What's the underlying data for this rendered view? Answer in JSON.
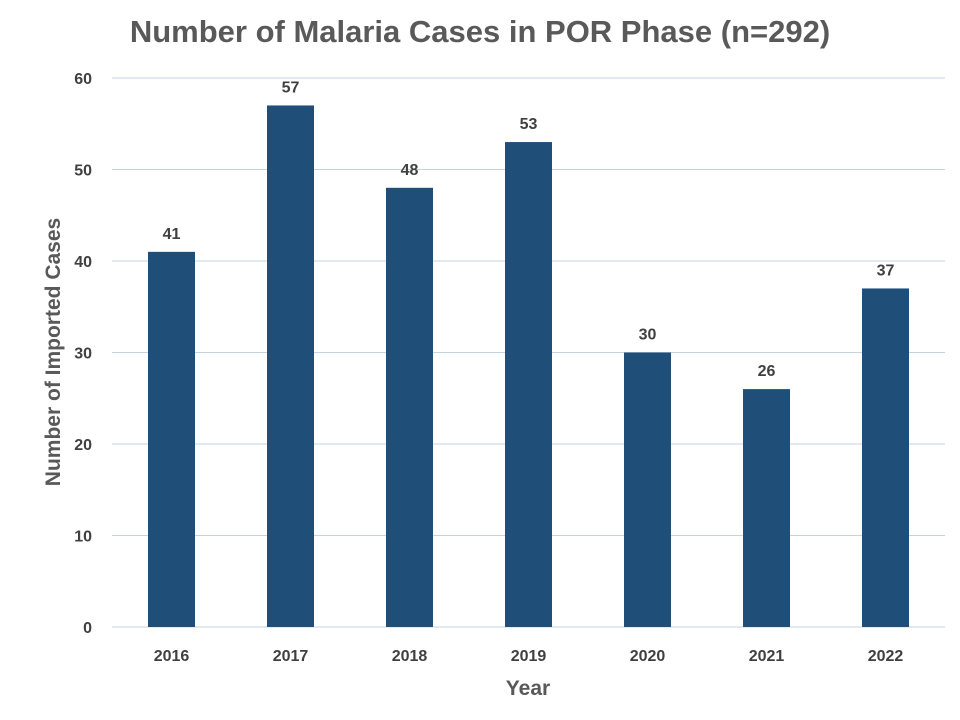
{
  "chart_data": {
    "type": "bar",
    "title": "Number of Malaria Cases in POR Phase (n=292)",
    "xlabel": "Year",
    "ylabel": "Number of Imported Cases",
    "categories": [
      "2016",
      "2017",
      "2018",
      "2019",
      "2020",
      "2021",
      "2022"
    ],
    "values": [
      41,
      57,
      48,
      53,
      30,
      26,
      37
    ],
    "ylim": [
      0,
      60
    ],
    "yticks": [
      0,
      10,
      20,
      30,
      40,
      50,
      60
    ],
    "grid": true,
    "legend": "none",
    "bar_color": "#1f4e79",
    "data_labels": true
  }
}
